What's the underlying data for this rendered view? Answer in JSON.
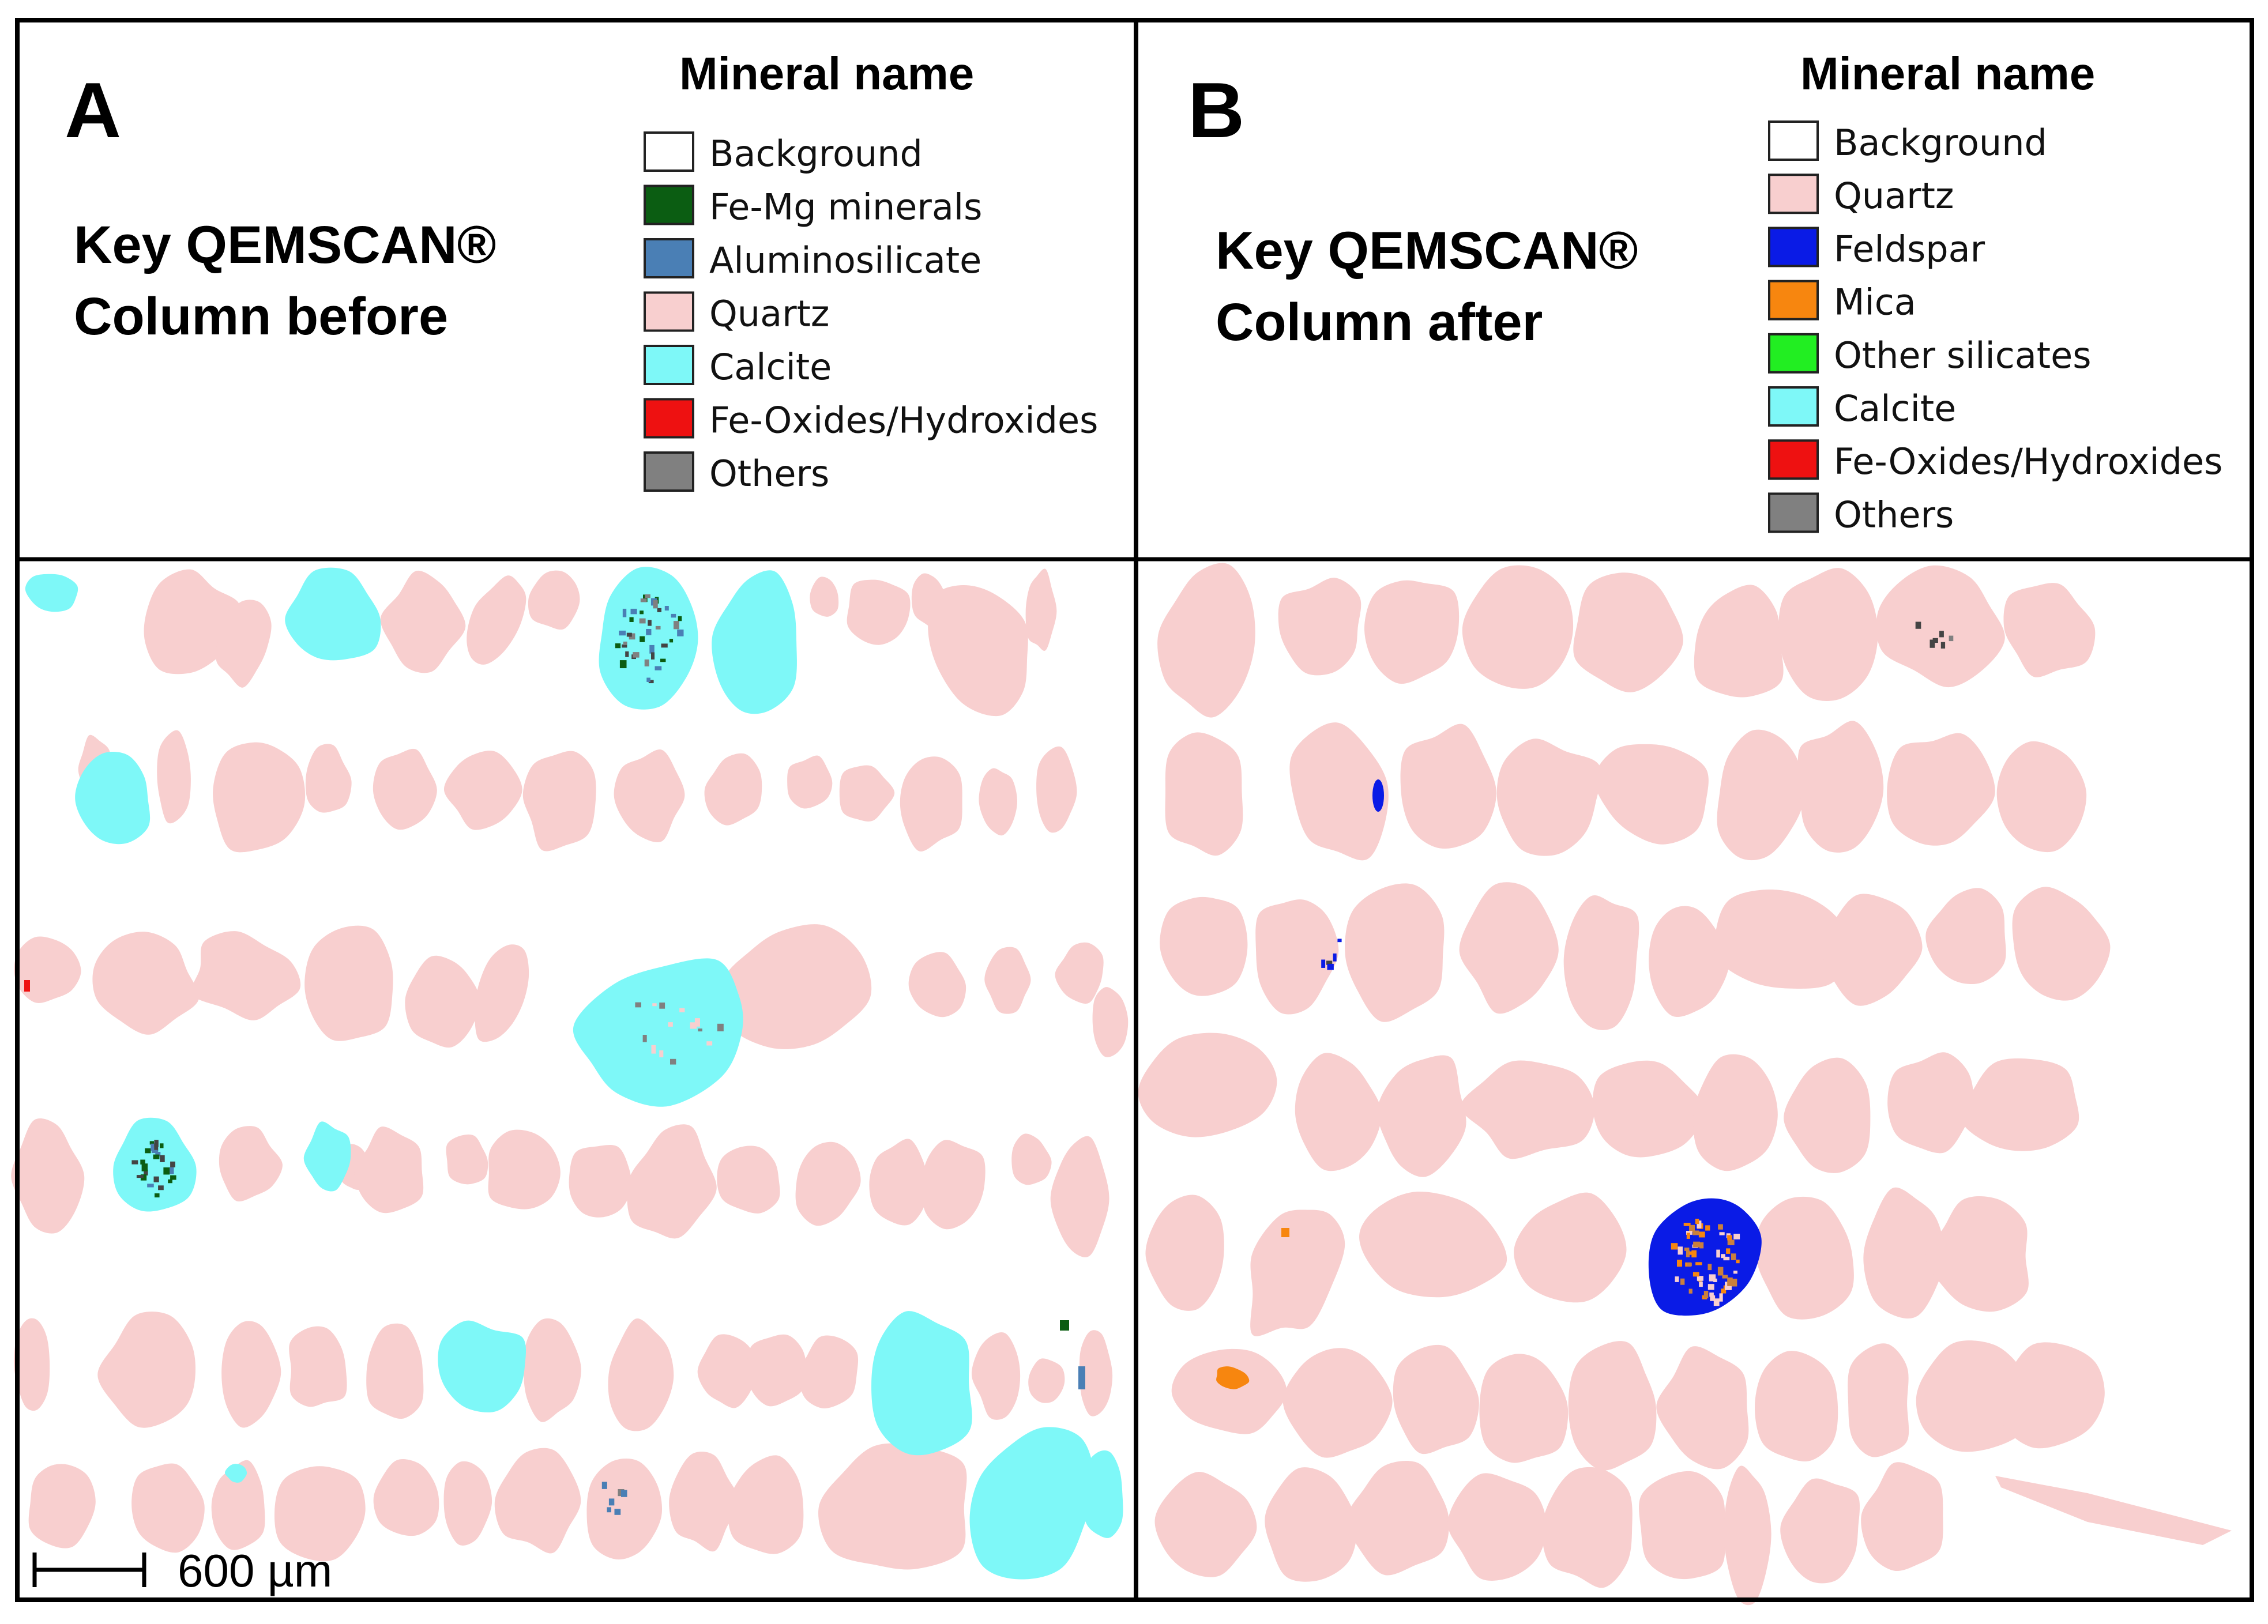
{
  "panels": [
    {
      "letter": "A",
      "key_title_line1": "Key QEMSCAN®",
      "key_title_line2": "Column before",
      "legend_heading": "Mineral name",
      "legend": [
        {
          "label": "Background",
          "color": "#ffffff"
        },
        {
          "label": "Fe-Mg minerals",
          "color": "#0b5d12"
        },
        {
          "label": "Aluminosilicate",
          "color": "#4a7fb5"
        },
        {
          "label": "Quartz",
          "color": "#f8cfcf"
        },
        {
          "label": "Calcite",
          "color": "#7ef8f8"
        },
        {
          "label": "Fe-Oxides/Hydroxides",
          "color": "#ee1111"
        },
        {
          "label": "Others",
          "color": "#808080"
        }
      ],
      "scale_bar_label": "600 µm"
    },
    {
      "letter": "B",
      "key_title_line1": "Key QEMSCAN®",
      "key_title_line2": "Column after",
      "legend_heading": "Mineral name",
      "legend": [
        {
          "label": "Background",
          "color": "#ffffff"
        },
        {
          "label": "Quartz",
          "color": "#f8cfcf"
        },
        {
          "label": "Feldspar",
          "color": "#0a1be6"
        },
        {
          "label": "Mica",
          "color": "#f7860f"
        },
        {
          "label": "Other silicates",
          "color": "#22ee22"
        },
        {
          "label": "Calcite",
          "color": "#7ef8f8"
        },
        {
          "label": "Fe-Oxides/Hydroxides",
          "color": "#ee1111"
        },
        {
          "label": "Others",
          "color": "#808080"
        }
      ]
    }
  ],
  "colors": {
    "quartz": "#f8cfcf",
    "calcite": "#7ef8f8",
    "feldspar": "#0a1be6",
    "mica": "#f7860f",
    "aluminosilicate": "#4a7fb5",
    "fe_mg": "#0b5d12",
    "others": "#808080",
    "frame": "#000000"
  }
}
